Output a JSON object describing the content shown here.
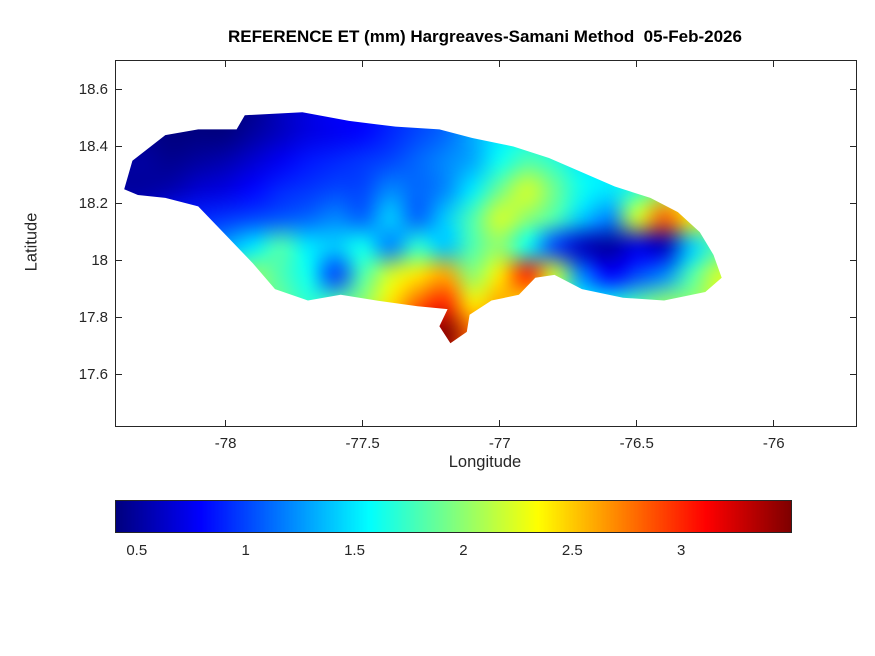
{
  "chart_data": {
    "type": "heatmap",
    "title": "REFERENCE ET (mm) Hargreaves-Samani Method  05-Feb-2026",
    "xlabel": "Longitude",
    "ylabel": "Latitude",
    "xlim": [
      -78.4,
      -75.7
    ],
    "ylim": [
      17.42,
      18.7
    ],
    "xticks": [
      -78,
      -77.5,
      -77,
      -76.5,
      -76
    ],
    "xtick_labels": [
      "-78",
      "-77.5",
      "-77",
      "-76.5",
      "-76"
    ],
    "yticks": [
      18.6,
      18.4,
      18.2,
      18.0,
      17.8,
      17.6
    ],
    "ytick_labels": [
      "18.6",
      "18.4",
      "18.2",
      "18",
      "17.8",
      "17.6"
    ],
    "colormap": "jet",
    "grid_on": false,
    "colorbar_position": "bottom",
    "color_scale": {
      "min": 0.4,
      "max": 3.5,
      "units": "mm"
    },
    "colorbar_ticks": [
      0.5,
      1,
      1.5,
      2,
      2.5,
      3
    ],
    "colorbar_tick_labels": [
      "0.5",
      "1",
      "1.5",
      "2",
      "2.5",
      "3"
    ],
    "grid": {
      "lon_start": -78.4,
      "lon_step": 0.1,
      "lat_start": 18.55,
      "lat_step": -0.1,
      "values": [
        [
          0.5,
          0.5,
          0.45,
          0.4,
          0.4,
          0.45,
          0.6,
          0.7,
          0.8,
          0.8,
          0.9,
          1.0,
          1.1,
          1.3,
          1.5,
          1.6,
          1.5,
          1.4,
          1.3,
          1.3,
          1.4,
          1.5,
          1.6
        ],
        [
          0.5,
          0.45,
          0.4,
          0.4,
          0.4,
          0.5,
          0.6,
          0.7,
          0.75,
          0.8,
          0.9,
          1.0,
          1.1,
          1.3,
          1.5,
          1.6,
          1.5,
          1.4,
          1.3,
          1.4,
          1.5,
          1.6,
          1.7
        ],
        [
          0.5,
          0.5,
          0.45,
          0.5,
          0.55,
          0.65,
          0.75,
          0.85,
          0.9,
          0.95,
          1.0,
          1.1,
          1.2,
          1.3,
          1.6,
          1.8,
          1.7,
          1.5,
          1.5,
          1.6,
          1.8,
          1.8,
          1.8
        ],
        [
          0.5,
          0.5,
          0.55,
          0.65,
          0.7,
          0.8,
          0.9,
          0.95,
          1.0,
          1.0,
          1.2,
          1.1,
          1.2,
          1.5,
          1.9,
          2.2,
          1.9,
          1.6,
          1.5,
          1.7,
          2.0,
          2.0,
          1.9
        ],
        [
          0.6,
          0.7,
          0.85,
          0.9,
          0.95,
          1.0,
          1.05,
          1.1,
          1.2,
          1.1,
          1.4,
          1.1,
          1.4,
          1.8,
          2.2,
          2.0,
          1.8,
          1.4,
          1.2,
          2.2,
          2.8,
          2.4,
          2.0
        ],
        [
          1.0,
          1.0,
          1.0,
          1.1,
          1.3,
          1.5,
          1.8,
          1.5,
          1.4,
          1.6,
          1.2,
          1.7,
          1.4,
          1.8,
          2.0,
          1.6,
          1.0,
          0.6,
          0.5,
          0.7,
          0.6,
          1.4,
          1.8
        ],
        [
          1.2,
          1.3,
          1.4,
          1.5,
          1.8,
          2.0,
          1.8,
          1.6,
          1.0,
          1.8,
          2.2,
          2.4,
          2.6,
          2.0,
          2.4,
          3.0,
          2.2,
          1.2,
          0.8,
          1.0,
          1.2,
          1.8,
          2.2
        ],
        [
          1.4,
          1.5,
          1.6,
          1.7,
          1.8,
          1.9,
          1.9,
          1.7,
          1.8,
          2.0,
          2.4,
          2.8,
          3.0,
          2.4,
          2.6,
          2.4,
          1.8,
          1.6,
          1.6,
          1.8,
          2.0,
          2.0,
          2.2
        ],
        [
          1.5,
          1.6,
          1.7,
          1.8,
          1.9,
          2.0,
          2.0,
          1.9,
          2.0,
          2.2,
          2.6,
          3.1,
          3.5,
          2.8,
          2.6,
          2.4,
          2.0,
          1.8,
          1.8,
          1.9,
          2.0,
          2.1,
          2.2
        ],
        [
          1.5,
          1.6,
          1.7,
          1.8,
          1.9,
          2.0,
          2.0,
          1.9,
          2.0,
          2.2,
          2.5,
          3.0,
          3.3,
          2.7,
          2.5,
          2.3,
          2.0,
          1.8,
          1.8,
          1.9,
          2.0,
          2.1,
          2.2
        ]
      ]
    },
    "outline": [
      [
        -78.37,
        18.25
      ],
      [
        -78.34,
        18.35
      ],
      [
        -78.22,
        18.44
      ],
      [
        -78.1,
        18.46
      ],
      [
        -77.96,
        18.46
      ],
      [
        -77.93,
        18.51
      ],
      [
        -77.72,
        18.52
      ],
      [
        -77.55,
        18.49
      ],
      [
        -77.38,
        18.47
      ],
      [
        -77.22,
        18.46
      ],
      [
        -77.1,
        18.43
      ],
      [
        -76.95,
        18.4
      ],
      [
        -76.82,
        18.36
      ],
      [
        -76.7,
        18.31
      ],
      [
        -76.58,
        18.26
      ],
      [
        -76.45,
        18.22
      ],
      [
        -76.35,
        18.17
      ],
      [
        -76.27,
        18.1
      ],
      [
        -76.22,
        18.02
      ],
      [
        -76.19,
        17.94
      ],
      [
        -76.25,
        17.89
      ],
      [
        -76.4,
        17.86
      ],
      [
        -76.55,
        17.87
      ],
      [
        -76.7,
        17.9
      ],
      [
        -76.8,
        17.95
      ],
      [
        -76.87,
        17.94
      ],
      [
        -76.93,
        17.88
      ],
      [
        -77.03,
        17.86
      ],
      [
        -77.11,
        17.81
      ],
      [
        -77.12,
        17.75
      ],
      [
        -77.18,
        17.71
      ],
      [
        -77.22,
        17.77
      ],
      [
        -77.19,
        17.83
      ],
      [
        -77.3,
        17.84
      ],
      [
        -77.45,
        17.86
      ],
      [
        -77.58,
        17.88
      ],
      [
        -77.7,
        17.86
      ],
      [
        -77.82,
        17.9
      ],
      [
        -77.9,
        17.99
      ],
      [
        -77.98,
        18.07
      ],
      [
        -78.1,
        18.19
      ],
      [
        -78.22,
        18.22
      ],
      [
        -78.32,
        18.23
      ]
    ]
  }
}
